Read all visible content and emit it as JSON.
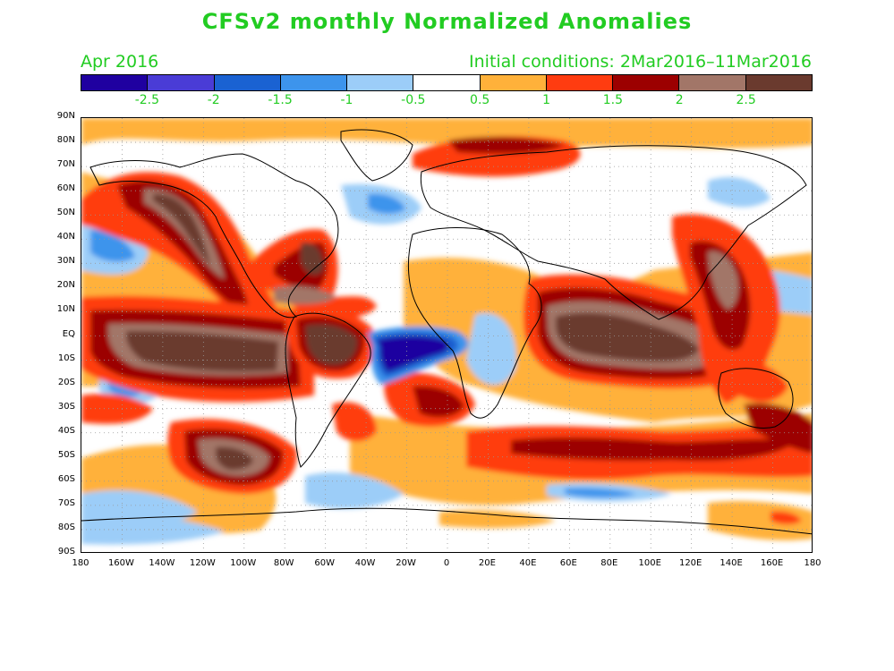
{
  "title": "CFSv2 monthly Normalized Anomalies",
  "month_label": "Apr 2016",
  "init_label": "Initial conditions: 2Mar2016–11Mar2016",
  "colorbar": {
    "colors": [
      "#1f00a0",
      "#4a3cd6",
      "#1a62d2",
      "#3d94ec",
      "#9ccdf8",
      "#ffffff",
      "#ffb13a",
      "#ff3c10",
      "#9c0000",
      "#a27668",
      "#6a3a2e"
    ],
    "labels": [
      "-2.5",
      "-2",
      "-1.5",
      "-1",
      "-0.5",
      "0.5",
      "1",
      "1.5",
      "2",
      "2.5"
    ]
  },
  "axes": {
    "lat_labels": [
      "90N",
      "80N",
      "70N",
      "60N",
      "50N",
      "40N",
      "30N",
      "20N",
      "10N",
      "EQ",
      "10S",
      "20S",
      "30S",
      "40S",
      "50S",
      "60S",
      "70S",
      "80S",
      "90S"
    ],
    "lon_labels": [
      "180",
      "160W",
      "140W",
      "120W",
      "100W",
      "80W",
      "60W",
      "40W",
      "20W",
      "0",
      "20E",
      "40E",
      "60E",
      "80E",
      "100E",
      "120E",
      "140E",
      "160E",
      "180"
    ]
  }
}
